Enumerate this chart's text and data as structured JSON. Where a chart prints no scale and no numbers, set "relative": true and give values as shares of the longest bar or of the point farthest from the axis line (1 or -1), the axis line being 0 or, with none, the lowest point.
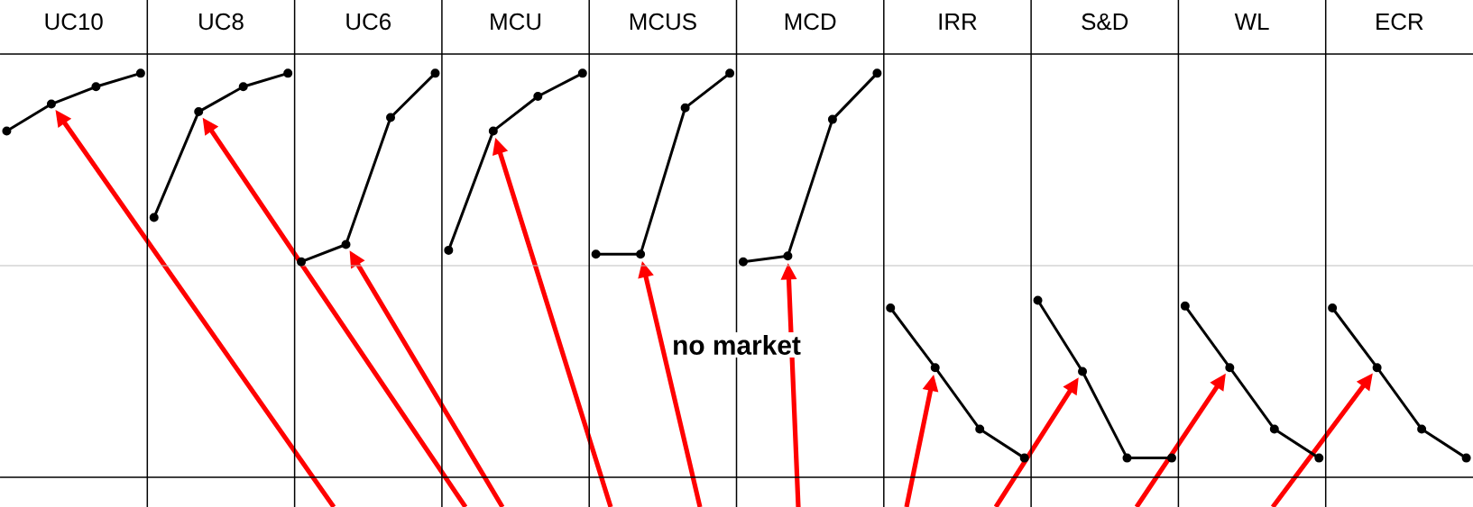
{
  "chart_data": [
    {
      "type": "line",
      "title": "UC10",
      "relative": true,
      "color": "#000000",
      "marker": "circle",
      "categories": [
        null,
        null,
        null,
        null
      ],
      "values": [
        0.7,
        0.84,
        0.93,
        1
      ]
    },
    {
      "type": "line",
      "title": "UC8",
      "relative": true,
      "color": "#000000",
      "marker": "circle",
      "categories": [
        null,
        null,
        null,
        null
      ],
      "values": [
        0.25,
        0.8,
        0.93,
        1
      ]
    },
    {
      "type": "line",
      "title": "UC6",
      "relative": true,
      "color": "#000000",
      "marker": "circle",
      "categories": [
        null,
        null,
        null,
        null
      ],
      "values": [
        0.02,
        0.11,
        0.77,
        1
      ]
    },
    {
      "type": "line",
      "title": "MCU",
      "relative": true,
      "color": "#000000",
      "marker": "circle",
      "categories": [
        null,
        null,
        null,
        null
      ],
      "values": [
        0.08,
        0.7,
        0.88,
        1
      ]
    },
    {
      "type": "line",
      "title": "MCUS",
      "relative": true,
      "color": "#000000",
      "marker": "circle",
      "categories": [
        null,
        null,
        null,
        null
      ],
      "values": [
        0.06,
        0.06,
        0.82,
        1
      ],
      "annotations": [
        "no market"
      ]
    },
    {
      "type": "line",
      "title": "MCD",
      "relative": true,
      "color": "#000000",
      "marker": "circle",
      "categories": [
        null,
        null,
        null,
        null
      ],
      "values": [
        0.02,
        0.05,
        0.76,
        1
      ]
    },
    {
      "type": "line",
      "title": "IRR",
      "relative": true,
      "color": "#000000",
      "marker": "circle",
      "categories": [
        null,
        null,
        null,
        null
      ],
      "values": [
        -0.22,
        -0.53,
        -0.85,
        -1
      ]
    },
    {
      "type": "line",
      "title": "S&D",
      "relative": true,
      "color": "#000000",
      "marker": "circle",
      "categories": [
        null,
        null,
        null,
        null
      ],
      "values": [
        -0.18,
        -0.55,
        -1,
        -1
      ]
    },
    {
      "type": "line",
      "title": "WL",
      "relative": true,
      "color": "#000000",
      "marker": "circle",
      "categories": [
        null,
        null,
        null,
        null
      ],
      "values": [
        -0.21,
        -0.53,
        -0.85,
        -1
      ]
    },
    {
      "type": "line",
      "title": "ECR",
      "relative": true,
      "color": "#000000",
      "marker": "circle",
      "categories": [
        null,
        null,
        null,
        null
      ],
      "values": [
        -0.22,
        -0.53,
        -0.85,
        -1
      ]
    }
  ]
}
